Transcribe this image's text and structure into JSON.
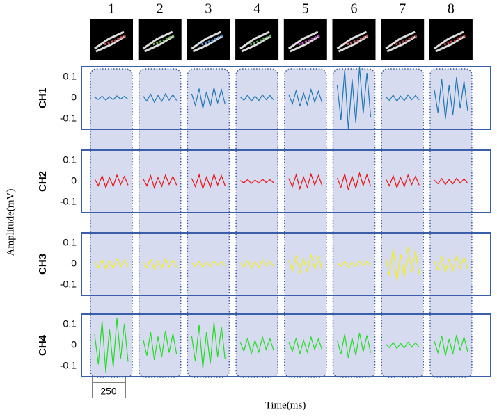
{
  "chart_data": {
    "type": "line",
    "column_labels": [
      "1",
      "2",
      "3",
      "4",
      "5",
      "6",
      "7",
      "8"
    ],
    "y_label": "Amplitude(mV)",
    "x_label": "Time(ms)",
    "scale_bar_label": "250",
    "ylim": [
      -0.15,
      0.15
    ],
    "yticks": [
      0.1,
      0,
      -0.1
    ],
    "panels": [
      {
        "name": "CH1",
        "color": "#1f77b4",
        "traces": [
          [
            0.004,
            -0.007,
            0.009,
            -0.01,
            0.006,
            -0.008,
            0.01,
            -0.005,
            0.008,
            -0.006
          ],
          [
            0.008,
            -0.014,
            0.018,
            -0.02,
            0.012,
            -0.016,
            0.02,
            -0.01,
            0.016,
            -0.012
          ],
          [
            0.02,
            -0.035,
            0.045,
            -0.05,
            0.03,
            -0.04,
            0.05,
            -0.025,
            0.04,
            -0.03
          ],
          [
            0.006,
            -0.011,
            0.014,
            -0.015,
            0.009,
            -0.012,
            0.015,
            -0.008,
            0.012,
            -0.009
          ],
          [
            0.016,
            -0.028,
            0.036,
            -0.04,
            0.024,
            -0.032,
            0.04,
            -0.02,
            0.032,
            -0.024
          ],
          [
            0.06,
            -0.105,
            0.135,
            -0.15,
            0.09,
            -0.12,
            0.15,
            -0.075,
            0.12,
            -0.09
          ],
          [
            0.006,
            -0.011,
            0.014,
            -0.015,
            0.009,
            -0.012,
            0.015,
            -0.008,
            0.012,
            -0.009
          ],
          [
            0.04,
            -0.07,
            0.09,
            -0.1,
            0.06,
            -0.08,
            0.1,
            -0.05,
            0.08,
            -0.06
          ]
        ]
      },
      {
        "name": "CH2",
        "color": "#ee1111",
        "traces": [
          [
            0.012,
            -0.021,
            0.027,
            -0.03,
            0.018,
            -0.024,
            0.03,
            -0.015,
            0.024,
            -0.018
          ],
          [
            0.012,
            -0.021,
            0.027,
            -0.03,
            0.018,
            -0.024,
            0.03,
            -0.015,
            0.024,
            -0.018
          ],
          [
            0.014,
            -0.025,
            0.032,
            -0.035,
            0.021,
            -0.028,
            0.035,
            -0.018,
            0.028,
            -0.021
          ],
          [
            0.004,
            -0.007,
            0.009,
            -0.01,
            0.006,
            -0.008,
            0.01,
            -0.005,
            0.008,
            -0.006
          ],
          [
            0.014,
            -0.025,
            0.032,
            -0.035,
            0.021,
            -0.028,
            0.035,
            -0.018,
            0.028,
            -0.021
          ],
          [
            0.016,
            -0.028,
            0.036,
            -0.04,
            0.024,
            -0.032,
            0.04,
            -0.02,
            0.032,
            -0.024
          ],
          [
            0.012,
            -0.021,
            0.027,
            -0.03,
            0.018,
            -0.024,
            0.03,
            -0.015,
            0.024,
            -0.018
          ],
          [
            0.006,
            -0.011,
            0.014,
            -0.015,
            0.009,
            -0.012,
            0.015,
            -0.008,
            0.012,
            -0.009
          ]
        ]
      },
      {
        "name": "CH3",
        "color": "#f2ee1a",
        "traces": [
          [
            0.01,
            -0.018,
            0.023,
            -0.025,
            0.015,
            -0.02,
            0.025,
            -0.013,
            0.02,
            -0.015
          ],
          [
            0.01,
            -0.018,
            0.023,
            -0.025,
            0.015,
            -0.02,
            0.025,
            -0.013,
            0.02,
            -0.015
          ],
          [
            0.006,
            -0.011,
            0.014,
            -0.015,
            0.009,
            -0.012,
            0.015,
            -0.008,
            0.012,
            -0.009
          ],
          [
            0.008,
            -0.014,
            0.018,
            -0.02,
            0.012,
            -0.016,
            0.02,
            -0.01,
            0.016,
            -0.012
          ],
          [
            0.018,
            -0.032,
            0.041,
            -0.045,
            0.027,
            -0.036,
            0.045,
            -0.023,
            0.036,
            -0.027
          ],
          [
            0.006,
            -0.011,
            0.014,
            -0.015,
            0.009,
            -0.012,
            0.015,
            -0.008,
            0.012,
            -0.009
          ],
          [
            0.032,
            -0.056,
            0.072,
            -0.08,
            0.048,
            -0.064,
            0.08,
            -0.04,
            0.064,
            -0.048
          ],
          [
            0.016,
            -0.028,
            0.036,
            -0.04,
            0.024,
            -0.032,
            0.04,
            -0.02,
            0.032,
            -0.024
          ]
        ]
      },
      {
        "name": "CH4",
        "color": "#22dd22",
        "traces": [
          [
            0.052,
            -0.091,
            0.117,
            -0.13,
            0.078,
            -0.104,
            0.13,
            -0.065,
            0.104,
            -0.078
          ],
          [
            0.028,
            -0.049,
            0.063,
            -0.07,
            0.042,
            -0.056,
            0.07,
            -0.035,
            0.056,
            -0.042
          ],
          [
            0.044,
            -0.077,
            0.099,
            -0.11,
            0.066,
            -0.088,
            0.11,
            -0.055,
            0.088,
            -0.066
          ],
          [
            0.016,
            -0.028,
            0.036,
            -0.04,
            0.024,
            -0.032,
            0.04,
            -0.02,
            0.032,
            -0.024
          ],
          [
            0.016,
            -0.028,
            0.036,
            -0.04,
            0.024,
            -0.032,
            0.04,
            -0.02,
            0.032,
            -0.024
          ],
          [
            0.024,
            -0.042,
            0.054,
            -0.06,
            0.036,
            -0.048,
            0.06,
            -0.03,
            0.048,
            -0.036
          ],
          [
            0.006,
            -0.011,
            0.014,
            -0.015,
            0.009,
            -0.012,
            0.015,
            -0.008,
            0.012,
            -0.009
          ],
          [
            0.02,
            -0.035,
            0.045,
            -0.05,
            0.03,
            -0.04,
            0.05,
            -0.025,
            0.04,
            -0.03
          ]
        ]
      }
    ]
  }
}
